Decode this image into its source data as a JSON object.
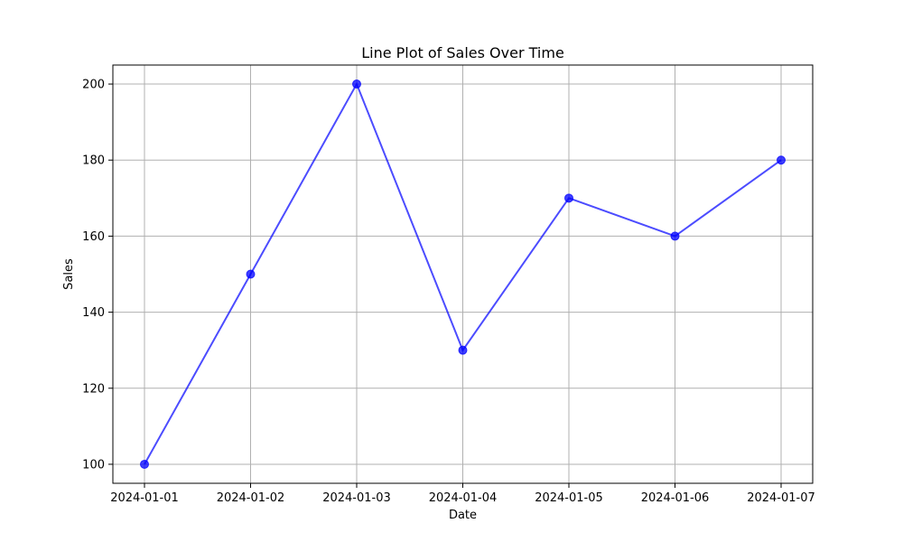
{
  "chart_data": {
    "type": "line",
    "title": "Line Plot of Sales Over Time",
    "xlabel": "Date",
    "ylabel": "Sales",
    "x": [
      "2024-01-01",
      "2024-01-02",
      "2024-01-03",
      "2024-01-04",
      "2024-01-05",
      "2024-01-06",
      "2024-01-07"
    ],
    "series": [
      {
        "values": [
          100,
          150,
          200,
          130,
          170,
          160,
          180
        ],
        "color": "#0000ff",
        "marker": "circle"
      }
    ],
    "ylim": [
      95,
      205
    ],
    "yticks": [
      100,
      120,
      140,
      160,
      180,
      200
    ],
    "grid": true,
    "legend": "none"
  }
}
